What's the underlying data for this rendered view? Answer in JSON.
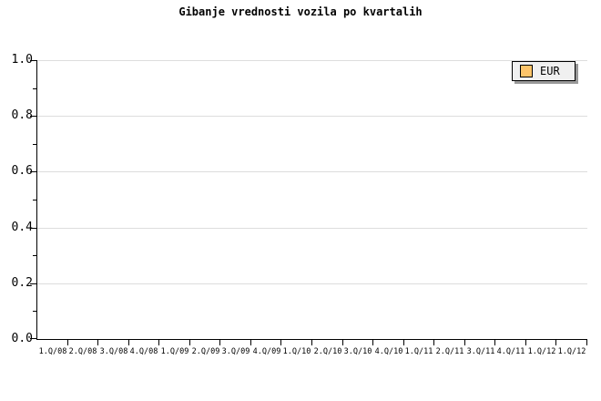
{
  "chart_data": {
    "type": "bar",
    "title": "Gibanje vrednosti vozila po kvartalih",
    "xlabel": "",
    "ylabel": "",
    "categories": [
      "1.Q/08",
      "2.Q/08",
      "3.Q/08",
      "4.Q/08",
      "1.Q/09",
      "2.Q/09",
      "3.Q/09",
      "4.Q/09",
      "1.Q/10",
      "2.Q/10",
      "3.Q/10",
      "4.Q/10",
      "1.Q/11",
      "2.Q/11",
      "3.Q/11",
      "4.Q/11",
      "1.Q/12",
      "1.Q/12"
    ],
    "series": [
      {
        "name": "EUR",
        "color": "#FDC46A",
        "values": []
      }
    ],
    "ylim": [
      0.0,
      1.0
    ],
    "y_tick_labels": [
      "0.0",
      "0.2",
      "0.4",
      "0.6",
      "0.8",
      "1.0"
    ],
    "y_major_step": 0.2,
    "y_minor_step": 0.1,
    "grid": "horizontal-major",
    "gridline_color": "#DDDDDD",
    "axis_color": "#000000",
    "legend_position": "top-right",
    "plot_empty": true
  }
}
